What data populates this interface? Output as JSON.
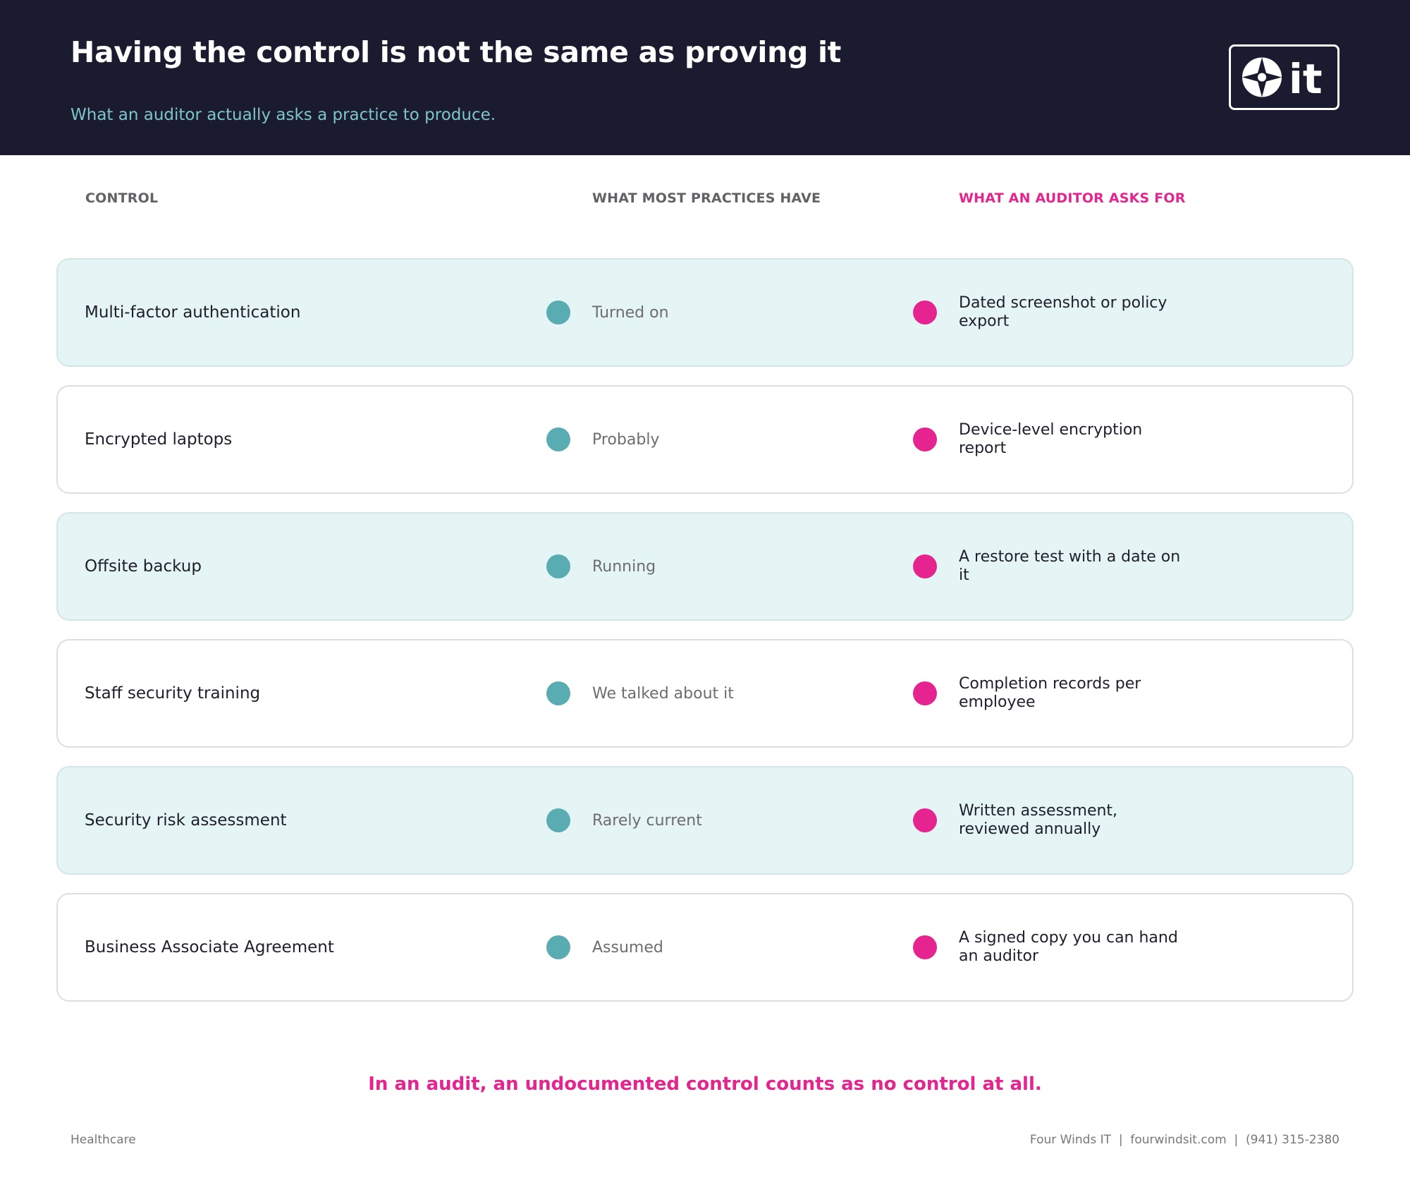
{
  "header": {
    "title": "Having the control is not the same as proving it",
    "subtitle": "What an auditor actually asks a practice to produce.",
    "logo": {
      "icon": "four-winds-compass-icon",
      "text": "it"
    }
  },
  "columns": {
    "control": "CONTROL",
    "have": "WHAT MOST PRACTICES HAVE",
    "asks": "WHAT AN AUDITOR ASKS FOR"
  },
  "rows": [
    {
      "control": "Multi-factor authentication",
      "have": "Turned on",
      "asks": "Dated screenshot or policy export"
    },
    {
      "control": "Encrypted laptops",
      "have": "Probably",
      "asks": "Device-level encryption report"
    },
    {
      "control": "Offsite backup",
      "have": "Running",
      "asks": "A restore test with a date on it"
    },
    {
      "control": "Staff security training",
      "have": "We talked about it",
      "asks": "Completion records per employee"
    },
    {
      "control": "Security risk assessment",
      "have": "Rarely current",
      "asks": "Written assessment, reviewed annually"
    },
    {
      "control": "Business Associate Agreement",
      "have": "Assumed",
      "asks": "A signed copy you can hand an auditor"
    }
  ],
  "callout": "In an audit, an undocumented control counts as no control at all.",
  "footer": {
    "left": "Healthcare",
    "right": "Four Winds IT  |  fourwindsit.com  |  (941) 315-2380"
  },
  "colors": {
    "header_bg": "#1a1b2f",
    "subtitle": "#7cc6cb",
    "teal": "#5aacb3",
    "pink": "#e5248f",
    "row_tint": "#e5f4f4"
  }
}
